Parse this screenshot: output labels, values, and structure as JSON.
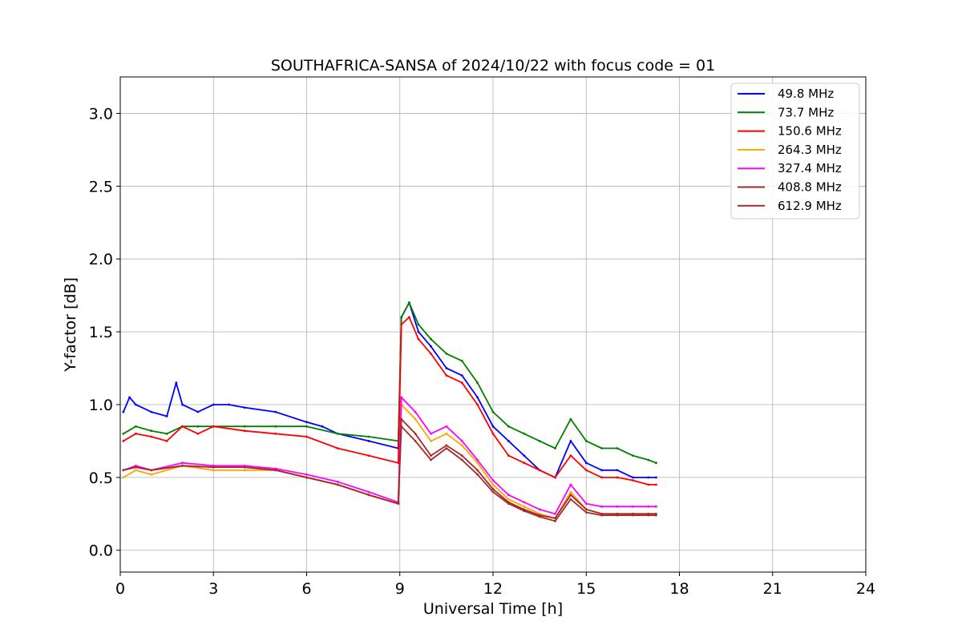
{
  "chart_data": {
    "type": "line",
    "title": "SOUTHAFRICA-SANSA of 2024/10/22 with focus code = 01",
    "xlabel": "Universal Time [h]",
    "ylabel": "Y-factor [dB]",
    "xlim": [
      0,
      24
    ],
    "ylim": [
      -0.15,
      3.25
    ],
    "xticks": [
      0,
      3,
      6,
      9,
      12,
      15,
      18,
      21,
      24
    ],
    "yticks": [
      0.0,
      0.5,
      1.0,
      1.5,
      2.0,
      2.5,
      3.0
    ],
    "xtick_labels": [
      "0",
      "3",
      "6",
      "9",
      "12",
      "15",
      "18",
      "21",
      "24"
    ],
    "ytick_labels": [
      "0.0",
      "0.5",
      "1.0",
      "1.5",
      "2.0",
      "2.5",
      "3.0"
    ],
    "grid": true,
    "legend_position": "top-right",
    "series": [
      {
        "name": " 49.8 MHz",
        "color": "#0000ff",
        "x": [
          0.1,
          0.3,
          0.5,
          1.0,
          1.5,
          1.8,
          2.0,
          2.5,
          3.0,
          3.5,
          4.0,
          5.0,
          6.0,
          6.5,
          7.0,
          8.0,
          8.95,
          9.05,
          9.3,
          9.6,
          10.0,
          10.5,
          11.0,
          11.5,
          12.0,
          12.5,
          13.0,
          13.5,
          14.0,
          14.5,
          15.0,
          15.5,
          16.0,
          16.5,
          17.0,
          17.25
        ],
        "y": [
          0.95,
          1.05,
          1.0,
          0.95,
          0.92,
          1.15,
          1.0,
          0.95,
          1.0,
          1.0,
          0.98,
          0.95,
          0.88,
          0.85,
          0.8,
          0.75,
          0.7,
          1.6,
          1.7,
          1.5,
          1.4,
          1.25,
          1.2,
          1.05,
          0.85,
          0.75,
          0.65,
          0.55,
          0.5,
          0.75,
          0.6,
          0.55,
          0.55,
          0.5,
          0.5,
          0.5
        ]
      },
      {
        "name": " 73.7 MHz",
        "color": "#008000",
        "x": [
          0.1,
          0.5,
          1.0,
          1.5,
          2.0,
          2.5,
          3.0,
          4.0,
          5.0,
          6.0,
          7.0,
          8.0,
          8.95,
          9.05,
          9.3,
          9.6,
          10.0,
          10.5,
          11.0,
          11.5,
          12.0,
          12.5,
          13.0,
          13.5,
          14.0,
          14.5,
          15.0,
          15.5,
          16.0,
          16.5,
          17.0,
          17.25
        ],
        "y": [
          0.8,
          0.85,
          0.82,
          0.8,
          0.85,
          0.85,
          0.85,
          0.85,
          0.85,
          0.85,
          0.8,
          0.78,
          0.75,
          1.6,
          1.7,
          1.55,
          1.45,
          1.35,
          1.3,
          1.15,
          0.95,
          0.85,
          0.8,
          0.75,
          0.7,
          0.9,
          0.75,
          0.7,
          0.7,
          0.65,
          0.62,
          0.6
        ]
      },
      {
        "name": "150.6 MHz",
        "color": "#ff0000",
        "x": [
          0.1,
          0.5,
          1.0,
          1.5,
          2.0,
          2.5,
          3.0,
          4.0,
          5.0,
          6.0,
          7.0,
          8.0,
          8.95,
          9.05,
          9.3,
          9.6,
          10.0,
          10.5,
          11.0,
          11.5,
          12.0,
          12.5,
          13.0,
          13.5,
          14.0,
          14.5,
          15.0,
          15.5,
          16.0,
          16.5,
          17.0,
          17.25
        ],
        "y": [
          0.75,
          0.8,
          0.78,
          0.75,
          0.85,
          0.8,
          0.85,
          0.82,
          0.8,
          0.78,
          0.7,
          0.65,
          0.6,
          1.55,
          1.6,
          1.45,
          1.35,
          1.2,
          1.15,
          1.0,
          0.8,
          0.65,
          0.6,
          0.55,
          0.5,
          0.65,
          0.55,
          0.5,
          0.5,
          0.48,
          0.45,
          0.45
        ]
      },
      {
        "name": "264.3 MHz",
        "color": "#ffa500",
        "x": [
          0.1,
          0.5,
          1.0,
          2.0,
          3.0,
          4.0,
          5.0,
          6.0,
          7.0,
          8.0,
          8.95,
          9.05,
          9.5,
          10.0,
          10.5,
          11.0,
          11.5,
          12.0,
          12.5,
          13.0,
          13.5,
          14.0,
          14.5,
          15.0,
          15.5,
          16.0,
          16.5,
          17.0,
          17.25
        ],
        "y": [
          0.5,
          0.55,
          0.52,
          0.58,
          0.55,
          0.55,
          0.55,
          0.5,
          0.45,
          0.38,
          0.32,
          1.0,
          0.9,
          0.75,
          0.8,
          0.72,
          0.6,
          0.45,
          0.35,
          0.3,
          0.25,
          0.22,
          0.4,
          0.28,
          0.25,
          0.25,
          0.25,
          0.25,
          0.25
        ]
      },
      {
        "name": "327.4 MHz",
        "color": "#ff00ff",
        "x": [
          0.1,
          0.5,
          1.0,
          2.0,
          3.0,
          4.0,
          5.0,
          6.0,
          7.0,
          8.0,
          8.95,
          9.05,
          9.5,
          10.0,
          10.5,
          11.0,
          11.5,
          12.0,
          12.5,
          13.0,
          13.5,
          14.0,
          14.5,
          15.0,
          15.5,
          16.0,
          16.5,
          17.0,
          17.25
        ],
        "y": [
          0.55,
          0.58,
          0.55,
          0.6,
          0.58,
          0.58,
          0.56,
          0.52,
          0.47,
          0.4,
          0.33,
          1.05,
          0.95,
          0.8,
          0.85,
          0.75,
          0.62,
          0.48,
          0.38,
          0.33,
          0.28,
          0.25,
          0.45,
          0.32,
          0.3,
          0.3,
          0.3,
          0.3,
          0.3
        ]
      },
      {
        "name": "408.8 MHz",
        "color": "#a52a2a",
        "x": [
          0.1,
          0.5,
          1.0,
          2.0,
          3.0,
          4.0,
          5.0,
          6.0,
          7.0,
          8.0,
          8.95,
          9.05,
          9.5,
          10.0,
          10.5,
          11.0,
          11.5,
          12.0,
          12.5,
          13.0,
          13.5,
          14.0,
          14.5,
          15.0,
          15.5,
          16.0,
          16.5,
          17.0,
          17.25
        ],
        "y": [
          0.55,
          0.57,
          0.55,
          0.58,
          0.57,
          0.57,
          0.55,
          0.5,
          0.45,
          0.38,
          0.32,
          0.9,
          0.8,
          0.65,
          0.72,
          0.65,
          0.55,
          0.42,
          0.33,
          0.28,
          0.24,
          0.22,
          0.38,
          0.28,
          0.25,
          0.25,
          0.25,
          0.25,
          0.25
        ]
      },
      {
        "name": "612.9 MHz",
        "color": "#a52a2a",
        "x": [
          0.1,
          0.5,
          1.0,
          2.0,
          3.0,
          4.0,
          5.0,
          6.0,
          7.0,
          8.0,
          8.95,
          9.05,
          9.5,
          10.0,
          10.5,
          11.0,
          11.5,
          12.0,
          12.5,
          13.0,
          13.5,
          14.0,
          14.5,
          15.0,
          15.5,
          16.0,
          16.5,
          17.0,
          17.25
        ],
        "y": [
          0.55,
          0.57,
          0.55,
          0.58,
          0.57,
          0.57,
          0.55,
          0.5,
          0.45,
          0.38,
          0.32,
          0.85,
          0.75,
          0.62,
          0.7,
          0.62,
          0.52,
          0.4,
          0.32,
          0.27,
          0.23,
          0.2,
          0.35,
          0.26,
          0.24,
          0.24,
          0.24,
          0.24,
          0.24
        ]
      }
    ]
  }
}
